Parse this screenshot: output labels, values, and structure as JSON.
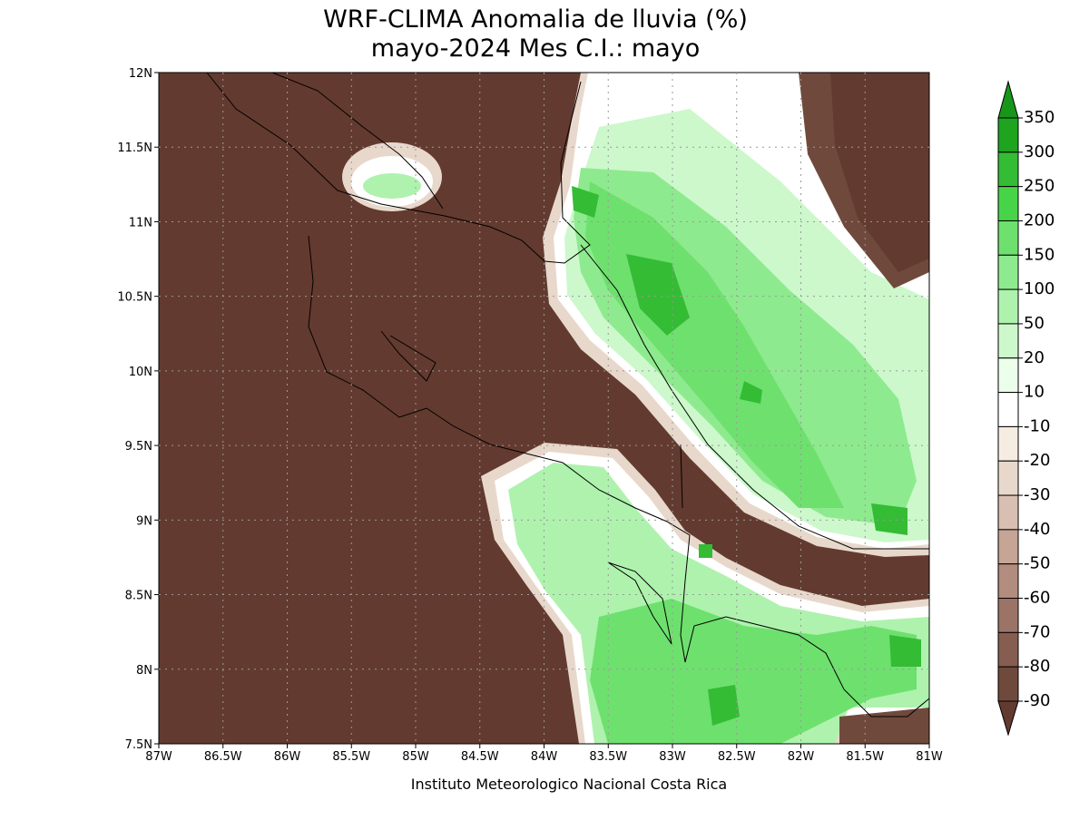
{
  "title": [
    "WRF-CLIMA Anomalia de lluvia (%)",
    "mayo-2024 Mes C.I.: mayo"
  ],
  "map": {
    "lon_ticks": [
      "87W",
      "86.5W",
      "86W",
      "85.5W",
      "85W",
      "84.5W",
      "84W",
      "83.5W",
      "83W",
      "82.5W",
      "82W",
      "81.5W",
      "81W"
    ],
    "lat_ticks": [
      "12N",
      "11.5N",
      "11N",
      "10.5N",
      "10N",
      "9.5N",
      "9N",
      "8.5N",
      "8N",
      "7.5N"
    ]
  },
  "colorbar": {
    "labels": [
      "350",
      "300",
      "250",
      "200",
      "150",
      "100",
      "50",
      "20",
      "10",
      "-10",
      "-20",
      "-30",
      "-40",
      "-50",
      "-60",
      "-70",
      "-80",
      "-90"
    ],
    "colors": [
      "#18961a",
      "#1ea41e",
      "#34bc34",
      "#48d448",
      "#6ee06e",
      "#8eea8e",
      "#aef2ae",
      "#ccf8cc",
      "#eafeea",
      "#ffffff",
      "#f5ece2",
      "#e8d8cc",
      "#d8bfb2",
      "#c6a496",
      "#b28c7e",
      "#9c7467",
      "#865e51",
      "#70493d",
      "#633a2f"
    ]
  },
  "footer": "Instituto Meteorologico Nacional Costa Rica"
}
